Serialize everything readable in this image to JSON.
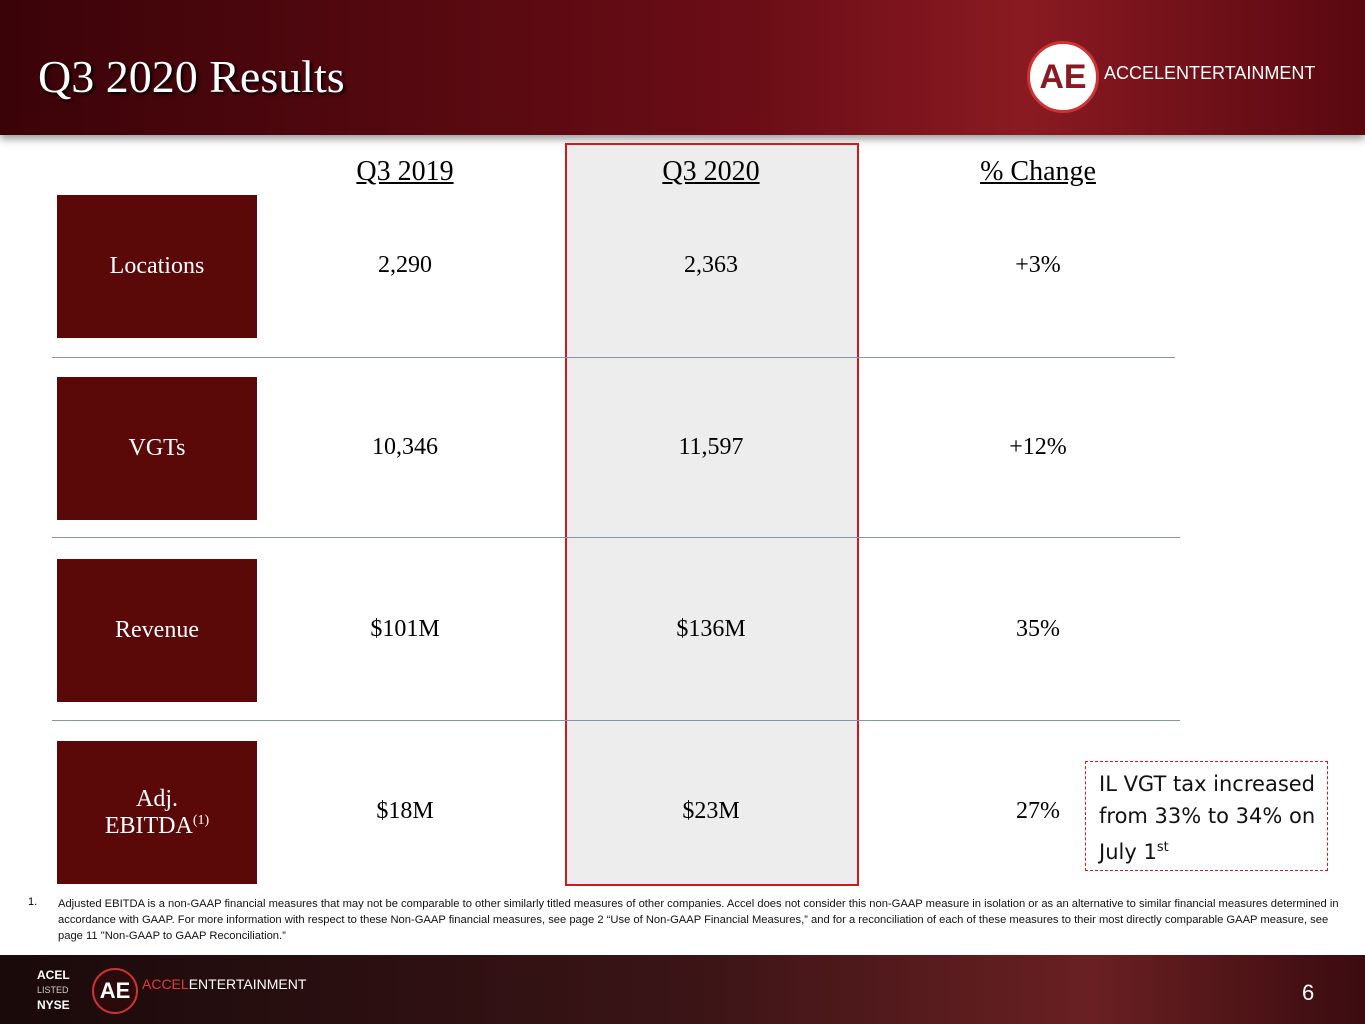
{
  "header": {
    "title": "Q3 2020 Results",
    "logo_mark": "AE",
    "logo_text": "ACCELENTERTAINMENT"
  },
  "table": {
    "columns": [
      "Q3 2019",
      "Q3 2020",
      "% Change"
    ],
    "rows": [
      {
        "label": "Locations",
        "cells": [
          "2,290",
          "2,363",
          "+3%"
        ]
      },
      {
        "label": "VGTs",
        "cells": [
          "10,346",
          "11,597",
          "+12%"
        ]
      },
      {
        "label": "Revenue",
        "cells": [
          "$101M",
          "$136M",
          "35%"
        ]
      },
      {
        "label": "Adj. EBITDA",
        "note": "(1)",
        "cells": [
          "$18M",
          "$23M",
          "27%"
        ]
      }
    ]
  },
  "callout": {
    "text": "IL VGT tax increased from 33% to 34% on July 1",
    "suffix": "st"
  },
  "footnote": {
    "number": "1.",
    "text": "Adjusted EBITDA is a non-GAAP financial measures that may not be comparable to other similarly titled measures of other companies. Accel does not consider this non-GAAP measure in isolation or as an alternative to similar financial measures determined in accordance with GAAP.  For more information with respect  to these Non-GAAP financial measures, see page 2 “Use of Non-GAAP Financial Measures,” and for a reconciliation of each of these measures to their most directly comparable GAAP measure, see page 11 \"Non-GAAP to GAAP Reconciliation.”"
  },
  "footer": {
    "ticker": "ACEL",
    "listed": "LISTED",
    "exchange": "NYSE",
    "logo_mark": "AE",
    "brand_accent": "ACCEL",
    "brand_rest": "ENTERTAINMENT",
    "page": "6"
  }
}
